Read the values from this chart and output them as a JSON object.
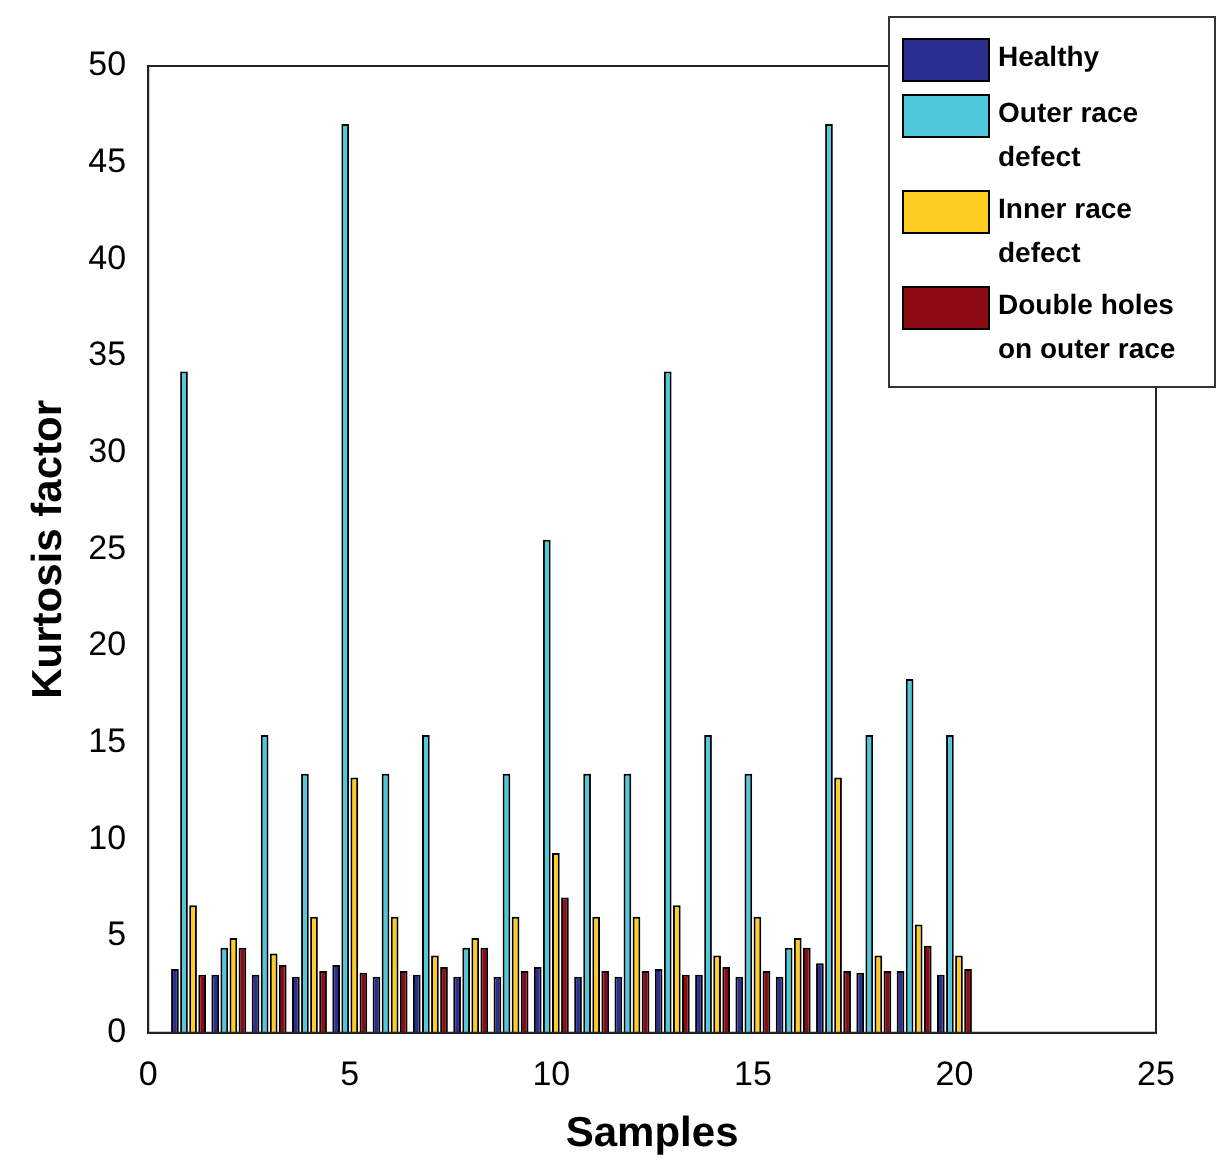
{
  "chart_data": {
    "type": "bar",
    "xlabel": "Samples",
    "ylabel": "Kurtosis factor",
    "x": [
      1,
      2,
      3,
      4,
      5,
      6,
      7,
      8,
      9,
      10,
      11,
      12,
      13,
      14,
      15,
      16,
      17,
      18,
      19,
      20
    ],
    "xlim": [
      0,
      25
    ],
    "xticks": [
      0,
      5,
      10,
      15,
      20,
      25
    ],
    "ylim": [
      0,
      50
    ],
    "yticks": [
      0,
      5,
      10,
      15,
      20,
      25,
      30,
      35,
      40,
      45,
      50
    ],
    "grid": false,
    "legend": "top right",
    "series": [
      {
        "name": "Healthy",
        "color": "#2a2f8f",
        "values": [
          3.3,
          3.0,
          3.0,
          2.9,
          3.5,
          2.9,
          3.0,
          2.9,
          2.9,
          3.4,
          2.9,
          2.9,
          3.3,
          3.0,
          2.9,
          2.9,
          3.6,
          3.1,
          3.2,
          3.0
        ]
      },
      {
        "name": "Outer race defect",
        "color": "#4fc8dc",
        "values": [
          34.2,
          4.4,
          15.4,
          13.4,
          47.0,
          13.4,
          15.4,
          4.4,
          13.4,
          25.5,
          13.4,
          13.4,
          34.2,
          15.4,
          13.4,
          4.4,
          47.0,
          15.4,
          18.3,
          15.4
        ]
      },
      {
        "name": "Inner race defect",
        "color": "#ffcc22",
        "values": [
          6.6,
          4.9,
          4.1,
          6.0,
          13.2,
          6.0,
          4.0,
          4.9,
          6.0,
          9.3,
          6.0,
          6.0,
          6.6,
          4.0,
          6.0,
          4.9,
          13.2,
          4.0,
          5.6,
          4.0
        ]
      },
      {
        "name": "Double holes on outer race",
        "color": "#8b0a14",
        "values": [
          3.0,
          4.4,
          3.5,
          3.2,
          3.1,
          3.2,
          3.4,
          4.4,
          3.2,
          7.0,
          3.2,
          3.2,
          3.0,
          3.4,
          3.2,
          4.4,
          3.2,
          3.2,
          4.5,
          3.3
        ]
      }
    ]
  }
}
